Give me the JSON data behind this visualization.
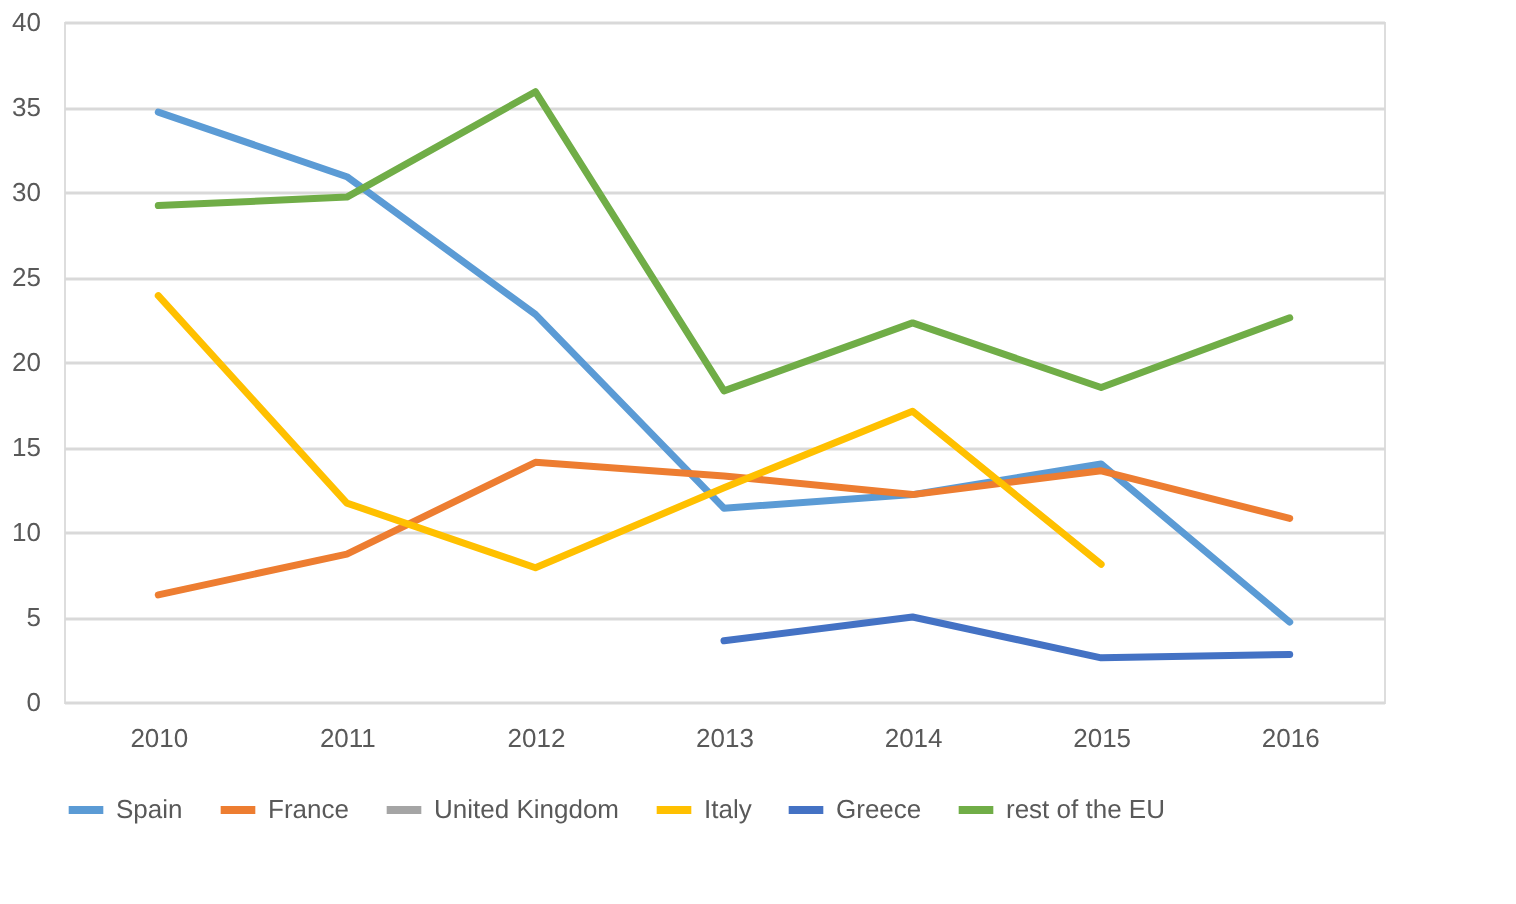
{
  "chart_data": {
    "type": "line",
    "categories": [
      "2010",
      "2011",
      "2012",
      "2013",
      "2014",
      "2015",
      "2016"
    ],
    "series": [
      {
        "name": "Spain",
        "color": "#5b9bd5",
        "values": [
          34.7,
          30.9,
          22.8,
          11.4,
          12.2,
          14.0,
          4.7
        ]
      },
      {
        "name": "France",
        "color": "#ed7d31",
        "values": [
          6.3,
          8.7,
          14.1,
          13.3,
          12.2,
          13.6,
          10.8
        ]
      },
      {
        "name": "United Kingdom",
        "color": "#a5a5a5",
        "values": [
          null,
          null,
          null,
          null,
          null,
          null,
          null
        ]
      },
      {
        "name": "Italy",
        "color": "#ffc000",
        "values": [
          23.9,
          11.7,
          7.9,
          12.6,
          17.1,
          8.1,
          null
        ]
      },
      {
        "name": "Greece",
        "color": "#4472c4",
        "values": [
          null,
          null,
          null,
          3.6,
          5.0,
          2.6,
          2.8
        ]
      },
      {
        "name": "rest of the EU",
        "color": "#70ad47",
        "values": [
          29.2,
          29.7,
          35.9,
          18.3,
          22.3,
          18.5,
          22.6
        ]
      }
    ],
    "ylim": [
      0,
      40
    ],
    "yticks": [
      0,
      5,
      10,
      15,
      20,
      25,
      30,
      35,
      40
    ],
    "grid": "y",
    "legend": "bottom",
    "marker": "none",
    "line_style": "solid"
  }
}
